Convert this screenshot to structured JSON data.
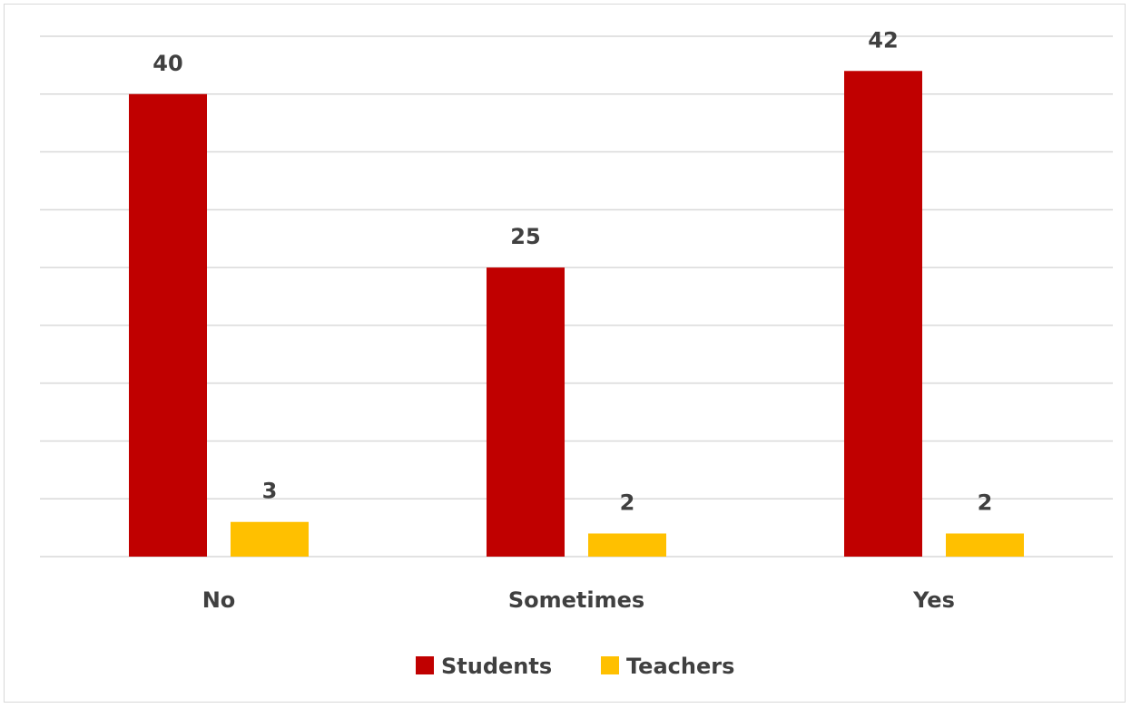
{
  "chart_data": {
    "type": "bar",
    "categories": [
      "No",
      "Sometimes",
      "Yes"
    ],
    "series": [
      {
        "name": "Students",
        "color": "#c00000",
        "values": [
          40,
          25,
          42
        ]
      },
      {
        "name": "Teachers",
        "color": "#ffc000",
        "values": [
          3,
          2,
          2
        ]
      }
    ],
    "ylim": [
      0,
      45
    ],
    "grid": true,
    "legend": "bottom",
    "data_labels": true
  }
}
